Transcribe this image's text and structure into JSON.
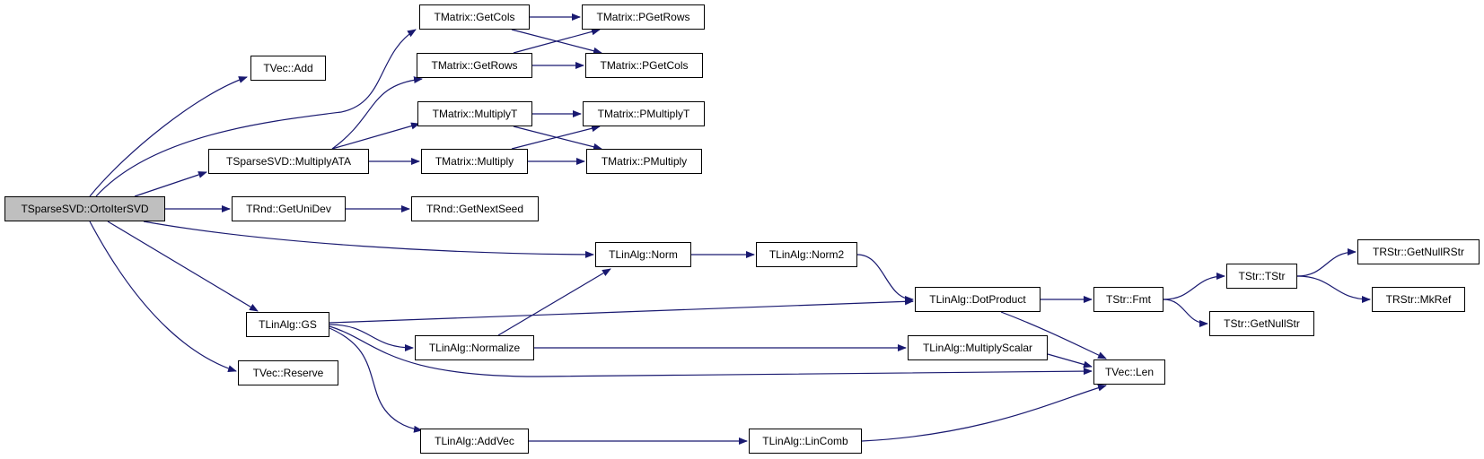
{
  "edge_color": "#191970",
  "root_fill": "#bfbfbf",
  "nodes": {
    "orto": {
      "label": "TSparseSVD::OrtoIterSVD",
      "root": true
    },
    "add": {
      "label": "TVec::Add"
    },
    "getcols": {
      "label": "TMatrix::GetCols"
    },
    "getrows": {
      "label": "TMatrix::GetRows"
    },
    "pgetrows": {
      "label": "TMatrix::PGetRows"
    },
    "pgetcols": {
      "label": "TMatrix::PGetCols"
    },
    "multiplyata": {
      "label": "TSparseSVD::MultiplyATA"
    },
    "multiplyt": {
      "label": "TMatrix::MultiplyT"
    },
    "multiply": {
      "label": "TMatrix::Multiply"
    },
    "pmultiplyt": {
      "label": "TMatrix::PMultiplyT"
    },
    "pmultiply": {
      "label": "TMatrix::PMultiply"
    },
    "getunidev": {
      "label": "TRnd::GetUniDev"
    },
    "getnextseed": {
      "label": "TRnd::GetNextSeed"
    },
    "norm": {
      "label": "TLinAlg::Norm"
    },
    "norm2": {
      "label": "TLinAlg::Norm2"
    },
    "dotproduct": {
      "label": "TLinAlg::DotProduct"
    },
    "fmt": {
      "label": "TStr::Fmt"
    },
    "tstr": {
      "label": "TStr::TStr"
    },
    "getnullrstr": {
      "label": "TRStr::GetNullRStr"
    },
    "mkref": {
      "label": "TRStr::MkRef"
    },
    "getnullstr": {
      "label": "TStr::GetNullStr"
    },
    "gs": {
      "label": "TLinAlg::GS"
    },
    "normalize": {
      "label": "TLinAlg::Normalize"
    },
    "multiplyscalar": {
      "label": "TLinAlg::MultiplyScalar"
    },
    "len": {
      "label": "TVec::Len"
    },
    "reserve": {
      "label": "TVec::Reserve"
    },
    "addvec": {
      "label": "TLinAlg::AddVec"
    },
    "lincomb": {
      "label": "TLinAlg::LinComb"
    }
  },
  "edges": [
    [
      "orto",
      "add"
    ],
    [
      "orto",
      "getcols"
    ],
    [
      "orto",
      "multiplyata"
    ],
    [
      "orto",
      "getunidev"
    ],
    [
      "orto",
      "norm"
    ],
    [
      "orto",
      "gs"
    ],
    [
      "orto",
      "reserve"
    ],
    [
      "multiplyata",
      "getrows"
    ],
    [
      "multiplyata",
      "multiplyt"
    ],
    [
      "multiplyata",
      "multiply"
    ],
    [
      "getcols",
      "pgetrows"
    ],
    [
      "getcols",
      "pgetcols"
    ],
    [
      "getrows",
      "pgetrows"
    ],
    [
      "getrows",
      "pgetcols"
    ],
    [
      "multiplyt",
      "pmultiplyt"
    ],
    [
      "multiplyt",
      "pmultiply"
    ],
    [
      "multiply",
      "pmultiplyt"
    ],
    [
      "multiply",
      "pmultiply"
    ],
    [
      "getunidev",
      "getnextseed"
    ],
    [
      "norm",
      "norm2"
    ],
    [
      "norm2",
      "dotproduct"
    ],
    [
      "dotproduct",
      "fmt"
    ],
    [
      "dotproduct",
      "len"
    ],
    [
      "fmt",
      "tstr"
    ],
    [
      "fmt",
      "getnullstr"
    ],
    [
      "tstr",
      "getnullrstr"
    ],
    [
      "tstr",
      "mkref"
    ],
    [
      "gs",
      "dotproduct"
    ],
    [
      "gs",
      "normalize"
    ],
    [
      "gs",
      "len"
    ],
    [
      "gs",
      "addvec"
    ],
    [
      "normalize",
      "norm"
    ],
    [
      "normalize",
      "multiplyscalar"
    ],
    [
      "multiplyscalar",
      "len"
    ],
    [
      "addvec",
      "lincomb"
    ],
    [
      "lincomb",
      "len"
    ]
  ]
}
